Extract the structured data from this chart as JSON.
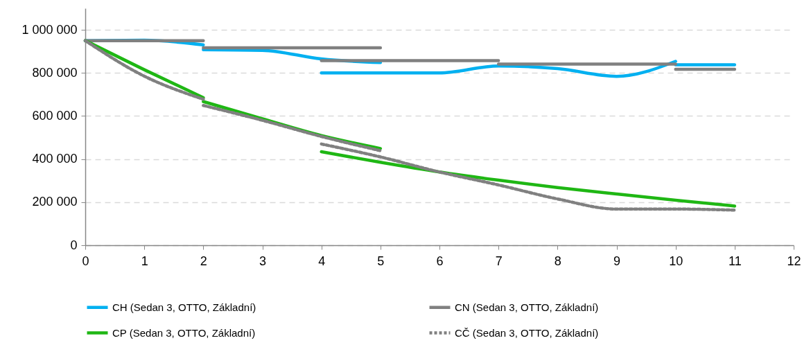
{
  "chart_data": {
    "type": "line",
    "xlim": [
      0,
      12
    ],
    "xticks": [
      0,
      1,
      2,
      3,
      4,
      5,
      6,
      7,
      8,
      9,
      10,
      11,
      12
    ],
    "ylim": [
      0,
      1100000
    ],
    "yticks": [
      0,
      {
        "value": 200000,
        "label": "200 000"
      },
      {
        "value": 400000,
        "label": "400 000"
      },
      {
        "value": 600000,
        "label": "600 000"
      },
      {
        "value": 800000,
        "label": "800 000"
      },
      {
        "value": 1000000,
        "label": "1 000 000"
      }
    ],
    "grid": "y",
    "legend": "bottom",
    "marker": "none",
    "series": [
      {
        "name": "CH (Sedan 3, OTTO, Základní)",
        "color": "#00b0f0",
        "line_style": "solid",
        "x": [
          0,
          1,
          2,
          null,
          2,
          3,
          4,
          5,
          null,
          4,
          5,
          6,
          7,
          8,
          9,
          10,
          null,
          10,
          11
        ],
        "values": [
          950000,
          952000,
          930000,
          null,
          908000,
          905000,
          865000,
          848000,
          null,
          800000,
          800000,
          800000,
          832000,
          820000,
          784000,
          854000,
          null,
          838000,
          838000
        ]
      },
      {
        "name": "CN (Sedan 3, OTTO, Základní)",
        "color": "#808080",
        "line_style": "solid",
        "x": [
          0,
          2,
          null,
          2,
          5,
          null,
          4,
          7,
          null,
          7,
          10,
          null,
          10,
          11
        ],
        "values": [
          950000,
          950000,
          null,
          917000,
          917000,
          null,
          857000,
          857000,
          null,
          841000,
          841000,
          null,
          817000,
          817000
        ]
      },
      {
        "name": "CP (Sedan 3, OTTO, Základní)",
        "color": "#1fb714",
        "line_style": "solid",
        "x": [
          0,
          1,
          2,
          null,
          2,
          3,
          4,
          5,
          null,
          4,
          5,
          6,
          7,
          8,
          9,
          10,
          11
        ],
        "values": [
          950000,
          815000,
          685000,
          null,
          667000,
          587000,
          509000,
          449000,
          null,
          434000,
          385000,
          340000,
          302000,
          268000,
          238000,
          209000,
          182000
        ]
      },
      {
        "name": "CČ (Sedan 3, OTTO, Základní)",
        "color": "#808080",
        "line_style": "dashed",
        "x": [
          0,
          1,
          2,
          null,
          2,
          3,
          4,
          5,
          null,
          4,
          5,
          6,
          7,
          8,
          9,
          10,
          11
        ],
        "values": [
          950000,
          785000,
          678000,
          null,
          649000,
          580000,
          505000,
          439000,
          null,
          470000,
          410000,
          340000,
          280000,
          215000,
          168000,
          168000,
          163000
        ]
      }
    ]
  }
}
